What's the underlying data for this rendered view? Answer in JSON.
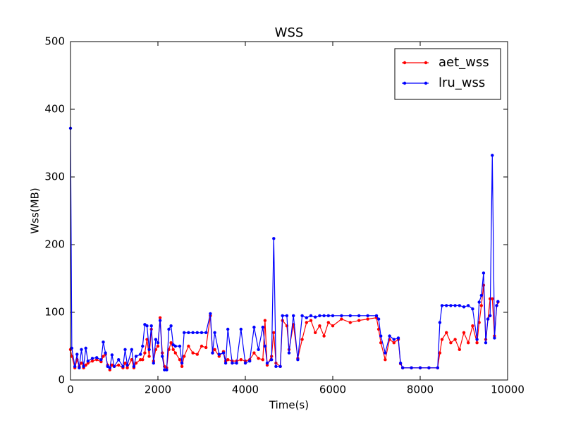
{
  "chart_data": {
    "type": "line",
    "title": "WSS",
    "xlabel": "Time(s)",
    "ylabel": "Wss(MB)",
    "x": [
      0,
      30,
      100,
      150,
      200,
      250,
      300,
      350,
      400,
      500,
      600,
      700,
      750,
      800,
      850,
      900,
      950,
      1000,
      1100,
      1200,
      1250,
      1300,
      1400,
      1450,
      1500,
      1600,
      1650,
      1700,
      1750,
      1800,
      1850,
      1900,
      1950,
      2000,
      2050,
      2100,
      2150,
      2200,
      2250,
      2300,
      2350,
      2400,
      2500,
      2550,
      2600,
      2700,
      2800,
      2900,
      3000,
      3100,
      3200,
      3250,
      3300,
      3400,
      3500,
      3550,
      3600,
      3700,
      3800,
      3900,
      4000,
      4100,
      4200,
      4300,
      4400,
      4450,
      4500,
      4600,
      4650,
      4700,
      4800,
      4850,
      4950,
      5000,
      5100,
      5200,
      5300,
      5400,
      5500,
      5600,
      5700,
      5800,
      5900,
      6000,
      6200,
      6400,
      6600,
      6800,
      7000,
      7050,
      7100,
      7200,
      7300,
      7400,
      7500,
      7550,
      7600,
      7800,
      8000,
      8200,
      8400,
      8450,
      8500,
      8600,
      8700,
      8800,
      8900,
      9000,
      9100,
      9200,
      9300,
      9350,
      9400,
      9450,
      9500,
      9550,
      9600,
      9650,
      9700,
      9750,
      9780
    ],
    "series": [
      {
        "name": "aet_wss",
        "color": "#ff0000",
        "values": [
          45,
          35,
          18,
          30,
          20,
          25,
          18,
          22,
          25,
          28,
          30,
          27,
          35,
          38,
          22,
          15,
          22,
          20,
          22,
          18,
          25,
          18,
          30,
          18,
          25,
          30,
          30,
          40,
          60,
          35,
          75,
          28,
          45,
          50,
          92,
          40,
          20,
          18,
          45,
          55,
          45,
          40,
          30,
          20,
          35,
          50,
          40,
          38,
          50,
          48,
          95,
          40,
          45,
          35,
          42,
          28,
          30,
          28,
          28,
          30,
          28,
          30,
          40,
          32,
          30,
          88,
          22,
          35,
          70,
          25,
          20,
          88,
          80,
          45,
          82,
          32,
          60,
          85,
          88,
          70,
          80,
          65,
          85,
          80,
          90,
          85,
          88,
          90,
          92,
          75,
          55,
          30,
          60,
          55,
          60,
          24,
          18,
          18,
          18,
          18,
          18,
          40,
          60,
          70,
          55,
          60,
          45,
          70,
          55,
          80,
          55,
          85,
          110,
          140,
          60,
          90,
          120,
          120,
          65,
          110,
          115
        ]
      },
      {
        "name": "lru_wss",
        "color": "#0000ff",
        "values": [
          372,
          47,
          20,
          38,
          18,
          45,
          20,
          47,
          28,
          32,
          33,
          30,
          56,
          40,
          20,
          18,
          37,
          20,
          30,
          20,
          45,
          22,
          45,
          20,
          35,
          38,
          50,
          82,
          80,
          45,
          80,
          25,
          60,
          55,
          88,
          35,
          15,
          15,
          75,
          80,
          52,
          50,
          50,
          25,
          70,
          70,
          70,
          70,
          70,
          70,
          98,
          40,
          70,
          38,
          40,
          25,
          75,
          25,
          25,
          75,
          25,
          28,
          78,
          45,
          78,
          50,
          25,
          30,
          209,
          20,
          20,
          95,
          95,
          40,
          95,
          30,
          95,
          92,
          95,
          93,
          95,
          95,
          95,
          95,
          95,
          95,
          95,
          95,
          95,
          90,
          65,
          40,
          65,
          60,
          62,
          25,
          18,
          18,
          18,
          18,
          18,
          85,
          110,
          110,
          110,
          110,
          110,
          108,
          110,
          105,
          60,
          115,
          125,
          158,
          55,
          90,
          95,
          332,
          62,
          110,
          116
        ]
      }
    ],
    "xlim": [
      0,
      10000
    ],
    "ylim": [
      0,
      500
    ],
    "xticks": [
      0,
      2000,
      4000,
      6000,
      8000,
      10000
    ],
    "yticks": [
      0,
      100,
      200,
      300,
      400,
      500
    ],
    "legend": "upper right"
  }
}
